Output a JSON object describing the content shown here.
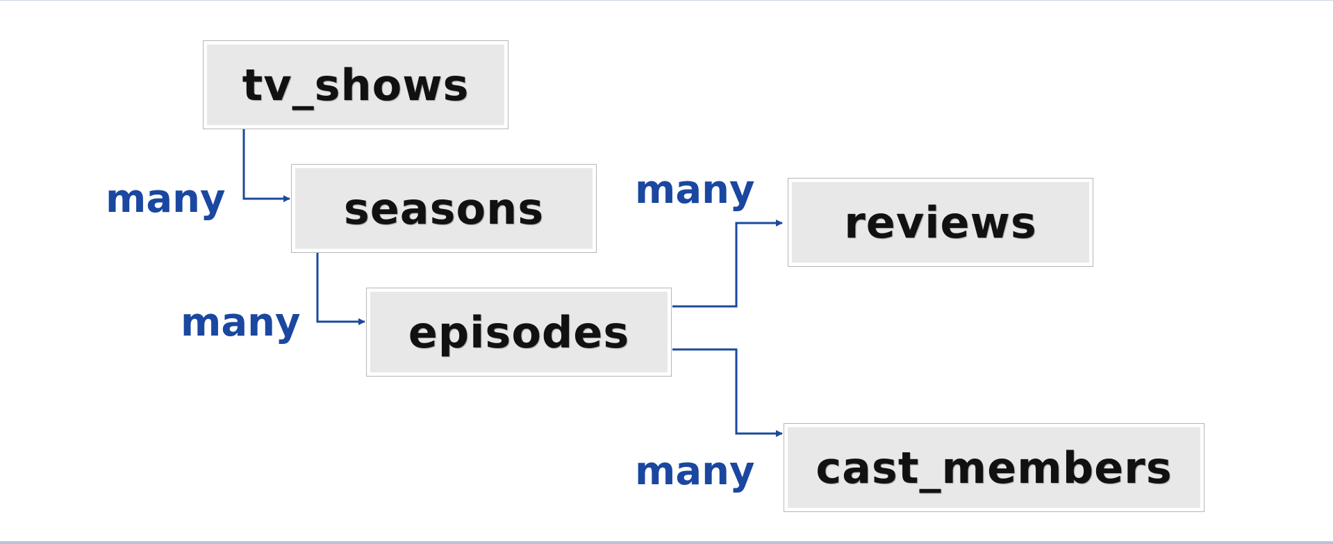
{
  "colors": {
    "connector": "#1b4a9c",
    "label": "#1a47a0"
  },
  "nodes": {
    "tv_shows": "tv_shows",
    "seasons": "seasons",
    "episodes": "episodes",
    "reviews": "reviews",
    "cast_members": "cast_members"
  },
  "labels": {
    "tv_shows_to_seasons": "many",
    "seasons_to_episodes": "many",
    "episodes_to_reviews": "many",
    "episodes_to_cast_members": "many"
  }
}
